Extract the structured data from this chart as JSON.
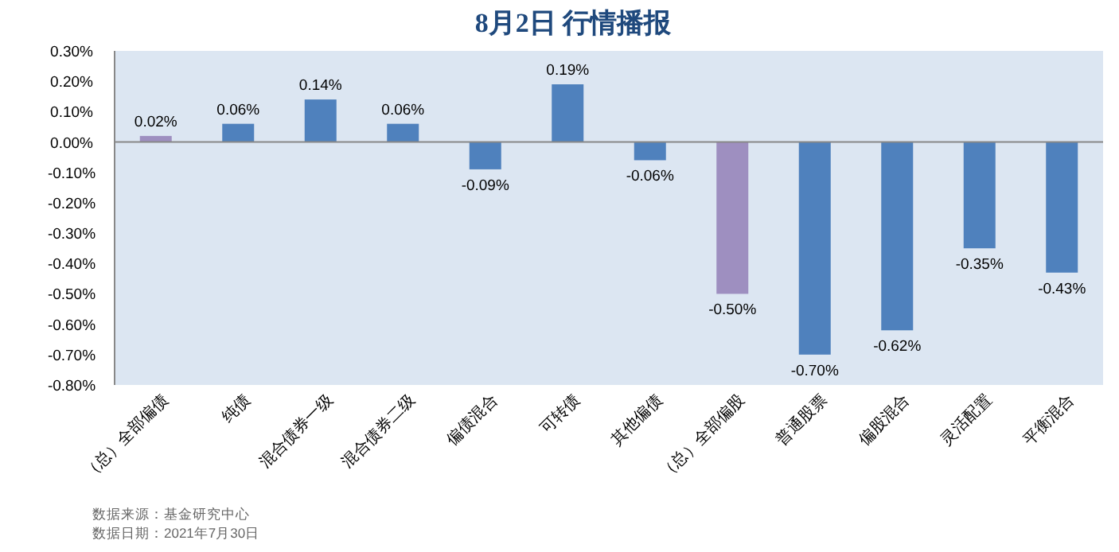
{
  "chart_data": {
    "type": "bar",
    "title": "8月2日  行情播报",
    "categories": [
      "（总）全部偏债",
      "纯债",
      "混合债券一级",
      "混合债券二级",
      "偏债混合",
      "可转债",
      "其他偏债",
      "（总）全部偏股",
      "普通股票",
      "偏股混合",
      "灵活配置",
      "平衡混合"
    ],
    "values": [
      0.02,
      0.06,
      0.14,
      0.06,
      -0.09,
      0.19,
      -0.06,
      -0.5,
      -0.7,
      -0.62,
      -0.35,
      -0.43
    ],
    "colors": [
      "#9e8fc0",
      "#4f81bd",
      "#4f81bd",
      "#4f81bd",
      "#4f81bd",
      "#4f81bd",
      "#4f81bd",
      "#9e8fc0",
      "#4f81bd",
      "#4f81bd",
      "#4f81bd",
      "#4f81bd"
    ],
    "value_labels": [
      "0.02%",
      "0.06%",
      "0.14%",
      "0.06%",
      "-0.09%",
      "0.19%",
      "-0.06%",
      "-0.50%",
      "-0.70%",
      "-0.62%",
      "-0.35%",
      "-0.43%"
    ],
    "ylim": [
      -0.8,
      0.3
    ],
    "yticks": [
      {
        "value": 0.3,
        "label": "0.30%"
      },
      {
        "value": 0.2,
        "label": "0.20%"
      },
      {
        "value": 0.1,
        "label": "0.10%"
      },
      {
        "value": 0,
        "label": "0.00%"
      },
      {
        "value": -0.1,
        "label": "-0.10%"
      },
      {
        "value": -0.2,
        "label": "-0.20%"
      },
      {
        "value": -0.3,
        "label": "-0.30%"
      },
      {
        "value": -0.4,
        "label": "-0.40%"
      },
      {
        "value": -0.5,
        "label": "-0.50%"
      },
      {
        "value": -0.6,
        "label": "-0.60%"
      },
      {
        "value": -0.7,
        "label": "-0.70%"
      },
      {
        "value": -0.8,
        "label": "-0.80%"
      }
    ],
    "annotations": [
      "数据来源：基金研究中心",
      "数据日期：2021年7月30日"
    ]
  }
}
